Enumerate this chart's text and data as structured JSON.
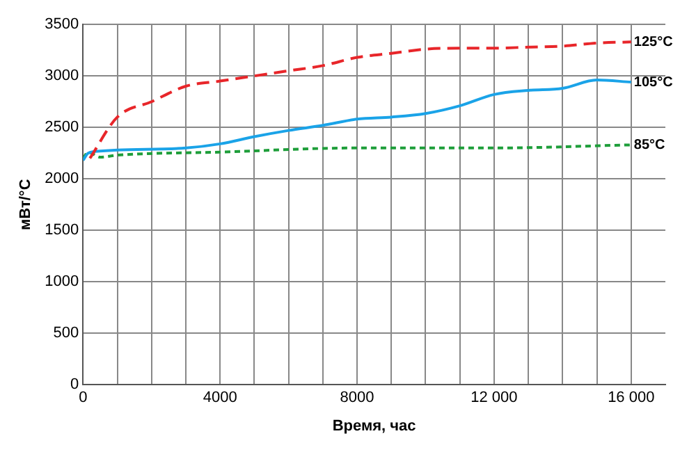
{
  "chart_data": {
    "type": "line",
    "xlabel": "Время, час",
    "ylabel": "мВт/°C",
    "xlim": [
      0,
      17000
    ],
    "ylim": [
      0,
      3500
    ],
    "xticks": [
      0,
      {
        "value": 1000,
        "label": null
      },
      {
        "value": 2000,
        "label": null
      },
      {
        "value": 3000,
        "label": null
      },
      4000,
      {
        "value": 5000,
        "label": null
      },
      {
        "value": 6000,
        "label": null
      },
      {
        "value": 7000,
        "label": null
      },
      8000,
      {
        "value": 9000,
        "label": null
      },
      {
        "value": 10000,
        "label": null
      },
      {
        "value": 11000,
        "label": null
      },
      {
        "value": 12000,
        "label": "12 000"
      },
      {
        "value": 13000,
        "label": null
      },
      {
        "value": 14000,
        "label": null
      },
      {
        "value": 15000,
        "label": null
      },
      {
        "value": 16000,
        "label": "16 000"
      }
    ],
    "yticks": [
      0,
      500,
      1000,
      1500,
      2000,
      2500,
      3000,
      3500
    ],
    "grid": true,
    "legend": false,
    "marker": "none",
    "series": [
      {
        "name": "125°C",
        "color": "#e8262a",
        "line_style": "dashed",
        "x": [
          200,
          1000,
          2000,
          3000,
          4000,
          5000,
          6000,
          7000,
          8000,
          9000,
          10000,
          11000,
          12000,
          13000,
          14000,
          15000,
          16000
        ],
        "values": [
          2200,
          2600,
          2750,
          2900,
          2950,
          3000,
          3050,
          3100,
          3180,
          3220,
          3260,
          3270,
          3270,
          3280,
          3290,
          3320,
          3330
        ]
      },
      {
        "name": "105°C",
        "color": "#1aa3e8",
        "line_style": "solid",
        "x": [
          0,
          150,
          500,
          1000,
          3000,
          4000,
          5000,
          6000,
          7000,
          8000,
          9000,
          10000,
          11000,
          12000,
          13000,
          14000,
          15000,
          16000
        ],
        "values": [
          2180,
          2250,
          2270,
          2280,
          2300,
          2340,
          2410,
          2470,
          2520,
          2580,
          2600,
          2635,
          2710,
          2820,
          2860,
          2880,
          2960,
          2940
        ]
      },
      {
        "name": "85°C",
        "color": "#1e9e3a",
        "line_style": "dotted",
        "x": [
          0,
          150,
          500,
          1000,
          4000,
          8000,
          12000,
          16000
        ],
        "values": [
          2200,
          2260,
          2210,
          2230,
          2260,
          2300,
          2300,
          2330
        ]
      }
    ]
  }
}
